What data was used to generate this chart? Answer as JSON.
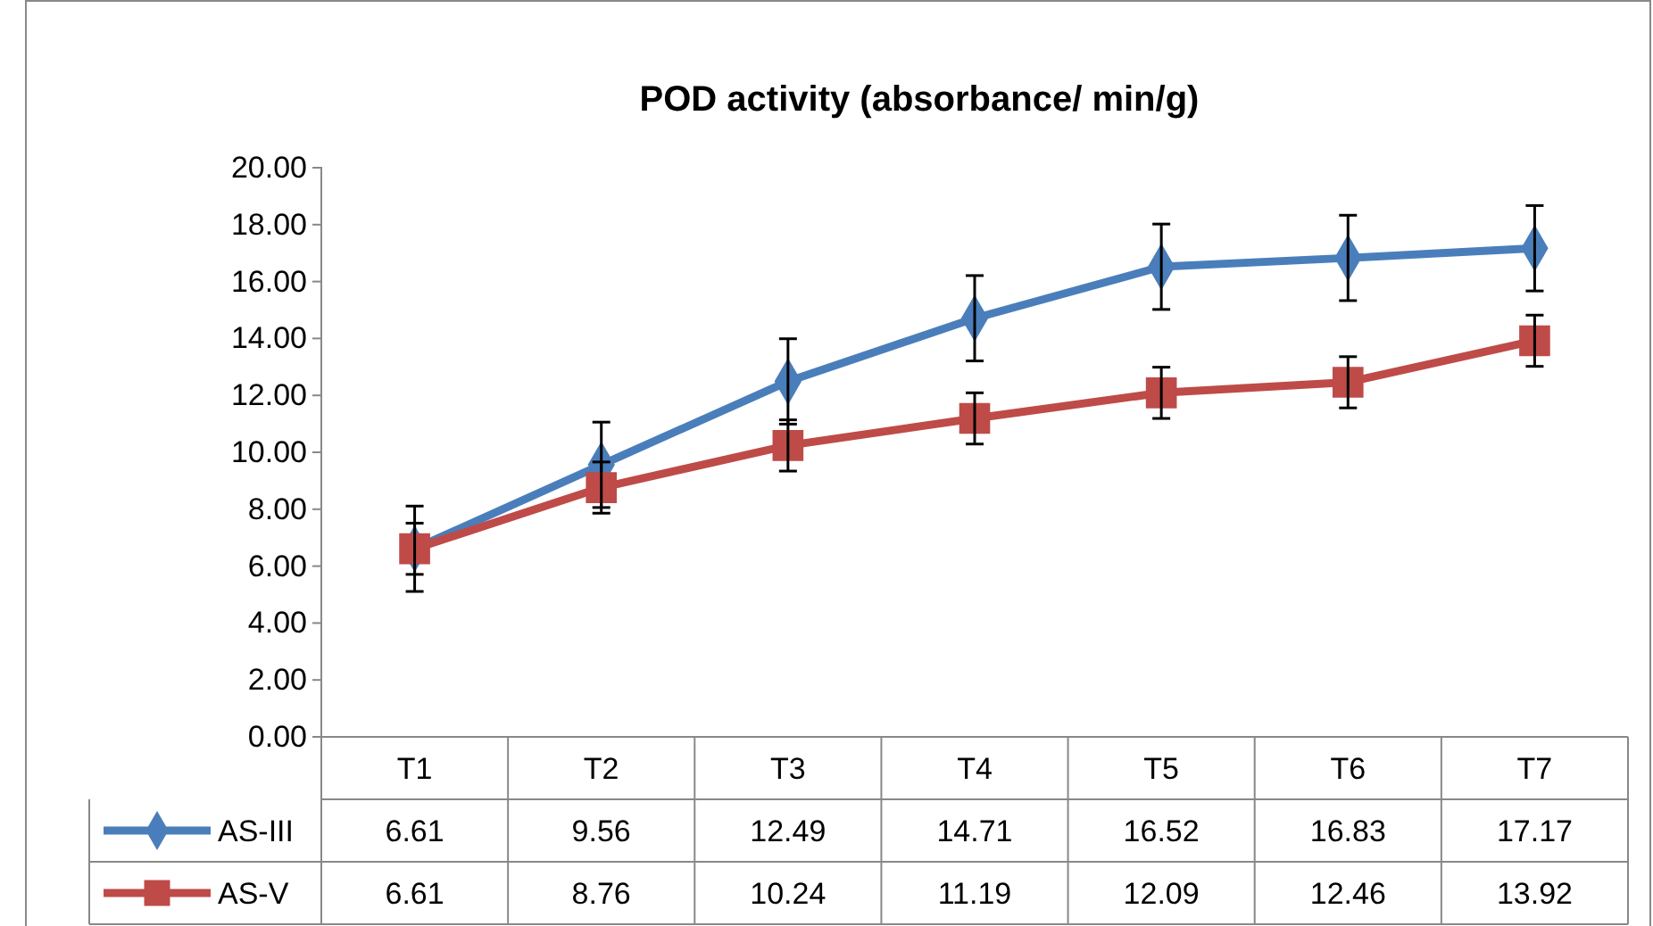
{
  "chart_data": {
    "type": "line",
    "title": "POD activity (absorbance/ min/g)",
    "categories": [
      "T1",
      "T2",
      "T3",
      "T4",
      "T5",
      "T6",
      "T7"
    ],
    "series": [
      {
        "name": "AS-III",
        "color": "#4a7ebb",
        "marker": "diamond",
        "values": [
          6.61,
          9.56,
          12.49,
          14.71,
          16.52,
          16.83,
          17.17
        ],
        "errors": [
          1.5,
          1.5,
          1.5,
          1.5,
          1.5,
          1.5,
          1.5
        ]
      },
      {
        "name": "AS-V",
        "color": "#be4b48",
        "marker": "square",
        "values": [
          6.61,
          8.76,
          10.24,
          11.19,
          12.09,
          12.46,
          13.92
        ],
        "errors": [
          0.9,
          0.9,
          0.9,
          0.9,
          0.9,
          0.9,
          0.9
        ]
      }
    ],
    "ylim": [
      0,
      20
    ],
    "yticks": [
      {
        "value": 0,
        "label": "0.00"
      },
      {
        "value": 2,
        "label": "2.00"
      },
      {
        "value": 4,
        "label": "4.00"
      },
      {
        "value": 6,
        "label": "6.00"
      },
      {
        "value": 8,
        "label": "8.00"
      },
      {
        "value": 10,
        "label": "10.00"
      },
      {
        "value": 12,
        "label": "12.00"
      },
      {
        "value": 14,
        "label": "14.00"
      },
      {
        "value": 16,
        "label": "16.00"
      },
      {
        "value": 18,
        "label": "18.00"
      },
      {
        "value": 20,
        "label": "20.00"
      }
    ],
    "data_labels": true,
    "legend": "bottom"
  }
}
